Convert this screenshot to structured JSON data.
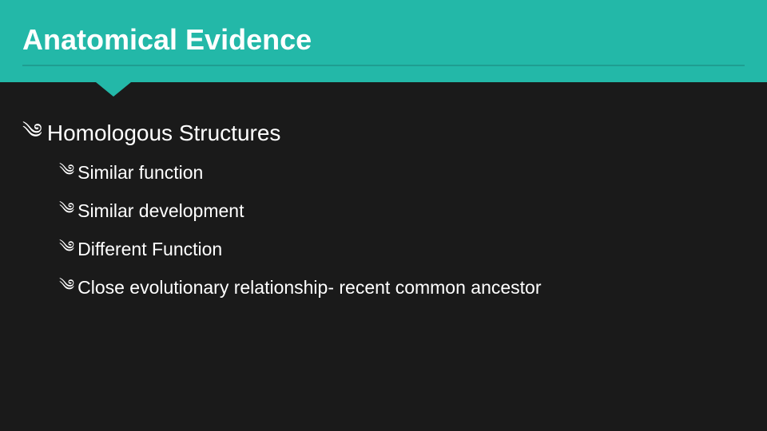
{
  "slide": {
    "background_color": "#1a1a1a",
    "title": {
      "text": "Anatomical Evidence",
      "band_color": "#23b8a8",
      "text_color": "#ffffff",
      "rule_color": "#1e9e91",
      "notch_color": "#23b8a8",
      "fontsize": 36
    },
    "body_text_color": "#ffffff",
    "bullet_glyph": "༄",
    "lvl1_items": [
      {
        "text": "Homologous Structures"
      }
    ],
    "lvl2_items": [
      {
        "text": "Similar function"
      },
      {
        "text": "Similar development"
      },
      {
        "text": "Different Function"
      },
      {
        "text": "Close evolutionary relationship- recent common ancestor"
      }
    ]
  }
}
